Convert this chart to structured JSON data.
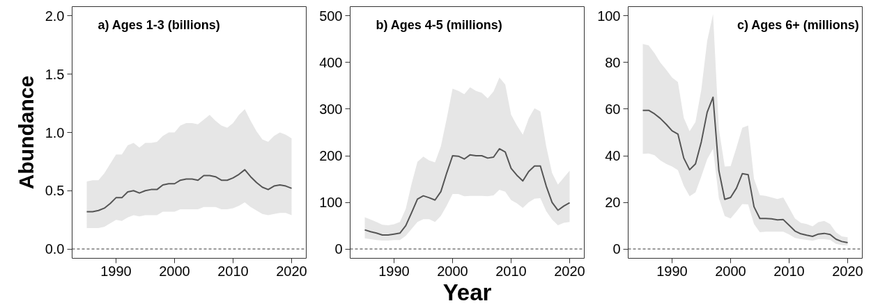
{
  "chart_data": [
    {
      "type": "line",
      "title": "a) Ages 1-3 (billions)",
      "ylabel": "Abundance",
      "x": [
        1985,
        1986,
        1987,
        1988,
        1989,
        1990,
        1991,
        1992,
        1993,
        1994,
        1995,
        1996,
        1997,
        1998,
        1999,
        2000,
        2001,
        2002,
        2003,
        2004,
        2005,
        2006,
        2007,
        2008,
        2009,
        2010,
        2011,
        2012,
        2013,
        2014,
        2015,
        2016,
        2017,
        2018,
        2019,
        2020
      ],
      "series": [
        {
          "color": "#555555",
          "values": [
            0.32,
            0.32,
            0.33,
            0.35,
            0.39,
            0.44,
            0.44,
            0.49,
            0.5,
            0.48,
            0.5,
            0.51,
            0.51,
            0.55,
            0.56,
            0.56,
            0.59,
            0.6,
            0.6,
            0.59,
            0.63,
            0.63,
            0.62,
            0.59,
            0.59,
            0.61,
            0.64,
            0.68,
            0.62,
            0.57,
            0.53,
            0.51,
            0.54,
            0.55,
            0.54,
            0.52
          ],
          "upper": [
            0.58,
            0.59,
            0.59,
            0.65,
            0.73,
            0.81,
            0.81,
            0.89,
            0.91,
            0.87,
            0.91,
            0.91,
            0.92,
            0.97,
            1.0,
            1.0,
            1.06,
            1.08,
            1.08,
            1.07,
            1.11,
            1.15,
            1.1,
            1.06,
            1.04,
            1.08,
            1.15,
            1.2,
            1.1,
            1.01,
            0.94,
            0.92,
            0.97,
            1.0,
            0.98,
            0.95
          ],
          "lower": [
            0.18,
            0.18,
            0.18,
            0.19,
            0.22,
            0.25,
            0.24,
            0.27,
            0.29,
            0.28,
            0.29,
            0.29,
            0.29,
            0.32,
            0.32,
            0.32,
            0.34,
            0.34,
            0.34,
            0.34,
            0.36,
            0.36,
            0.36,
            0.34,
            0.34,
            0.35,
            0.37,
            0.4,
            0.36,
            0.33,
            0.3,
            0.29,
            0.3,
            0.31,
            0.31,
            0.29
          ]
        }
      ],
      "xlim": [
        1982.5,
        2022.5
      ],
      "ylim": [
        -0.08,
        2.08
      ],
      "xticks": [
        1990,
        2000,
        2010,
        2020
      ],
      "yticks": [
        {
          "value": 0,
          "label": "0.0"
        },
        {
          "value": 0.5,
          "label": "0.5"
        },
        {
          "value": 1,
          "label": "1.0"
        },
        {
          "value": 1.5,
          "label": "1.5"
        },
        {
          "value": 2,
          "label": "2.0"
        }
      ],
      "ref_lines": [
        {
          "axis": "y",
          "value": 0,
          "line_style": "dashed",
          "color": "#333333"
        }
      ],
      "line_style": "solid",
      "marker": "none"
    },
    {
      "type": "line",
      "title": "b) Ages 4-5 (millions)",
      "xlabel": "Year",
      "x": [
        1985,
        1986,
        1987,
        1988,
        1989,
        1990,
        1991,
        1992,
        1993,
        1994,
        1995,
        1996,
        1997,
        1998,
        1999,
        2000,
        2001,
        2002,
        2003,
        2004,
        2005,
        2006,
        2007,
        2008,
        2009,
        2010,
        2011,
        2012,
        2013,
        2014,
        2015,
        2016,
        2017,
        2018,
        2019,
        2020
      ],
      "series": [
        {
          "color": "#555555",
          "values": [
            41,
            37,
            34,
            30,
            30,
            32,
            34,
            50,
            78,
            107,
            114,
            110,
            105,
            123,
            163,
            200,
            199,
            193,
            202,
            200,
            200,
            195,
            197,
            215,
            208,
            173,
            158,
            146,
            166,
            178,
            178,
            135,
            100,
            83,
            92,
            99
          ],
          "upper": [
            68,
            63,
            58,
            52,
            51,
            53,
            58,
            86,
            140,
            187,
            198,
            190,
            186,
            220,
            280,
            344,
            339,
            332,
            347,
            339,
            335,
            323,
            338,
            368,
            353,
            288,
            265,
            245,
            280,
            302,
            295,
            220,
            163,
            138,
            153,
            168
          ],
          "lower": [
            23,
            21,
            19,
            18,
            18,
            19,
            19,
            28,
            43,
            58,
            64,
            64,
            58,
            71,
            93,
            118,
            118,
            113,
            114,
            114,
            114,
            113,
            115,
            127,
            123,
            105,
            98,
            88,
            100,
            108,
            109,
            81,
            63,
            51,
            56,
            58
          ]
        }
      ],
      "xlim": [
        1982.5,
        2022.5
      ],
      "ylim": [
        -20,
        520
      ],
      "xticks": [
        1990,
        2000,
        2010,
        2020
      ],
      "yticks": [
        0,
        100,
        200,
        300,
        400,
        500
      ],
      "ref_lines": [
        {
          "axis": "y",
          "value": 0,
          "line_style": "dashed",
          "color": "#333333"
        }
      ],
      "line_style": "solid",
      "marker": "none"
    },
    {
      "type": "line",
      "title": "c) Ages 6+ (millions)",
      "x": [
        1985,
        1986,
        1987,
        1988,
        1989,
        1990,
        1991,
        1992,
        1993,
        1994,
        1995,
        1996,
        1997,
        1998,
        1999,
        2000,
        2001,
        2002,
        2003,
        2004,
        2005,
        2006,
        2007,
        2008,
        2009,
        2010,
        2011,
        2012,
        2013,
        2014,
        2015,
        2016,
        2017,
        2018,
        2019,
        2020
      ],
      "series": [
        {
          "color": "#555555",
          "values": [
            59.5,
            59.5,
            58,
            56,
            53.5,
            50.7,
            49.3,
            39,
            34,
            36.5,
            46,
            58.7,
            65.1,
            33.6,
            21.3,
            22.1,
            26.1,
            32.3,
            31.9,
            18.1,
            13.1,
            13.1,
            12.9,
            12.5,
            12.6,
            10.2,
            7.7,
            6.5,
            5.9,
            5.4,
            6.4,
            6.7,
            6.2,
            4.2,
            3.2,
            2.7
          ],
          "upper": [
            88,
            87.4,
            84,
            80,
            76.9,
            73.6,
            71.6,
            56.3,
            50.5,
            54.5,
            68.4,
            89.3,
            100.8,
            51.5,
            35.4,
            35.5,
            43.5,
            52,
            53,
            30.1,
            23.1,
            22.8,
            22.1,
            21.4,
            22.1,
            17.6,
            13.1,
            11.2,
            10.7,
            9.7,
            11.5,
            12,
            10.7,
            7.2,
            5.4,
            5
          ],
          "lower": [
            40.8,
            41,
            40.2,
            38,
            36.5,
            35.4,
            33.8,
            27.1,
            22.6,
            24.3,
            31.1,
            38.5,
            43,
            21.7,
            14.1,
            13.1,
            16.1,
            19.3,
            19.1,
            10.7,
            7.2,
            7.4,
            7.4,
            7.4,
            7.4,
            6.2,
            4.7,
            4.2,
            3.9,
            3.5,
            4.2,
            4.2,
            3.9,
            2.2,
            1.7,
            1.5
          ]
        }
      ],
      "xlim": [
        1982.5,
        2022.5
      ],
      "ylim": [
        -4,
        104
      ],
      "xticks": [
        1990,
        2000,
        2010,
        2020
      ],
      "yticks": [
        0,
        20,
        40,
        60,
        80,
        100
      ],
      "ref_lines": [
        {
          "axis": "y",
          "value": 0,
          "line_style": "dashed",
          "color": "#333333"
        }
      ],
      "line_style": "solid",
      "marker": "none"
    }
  ]
}
